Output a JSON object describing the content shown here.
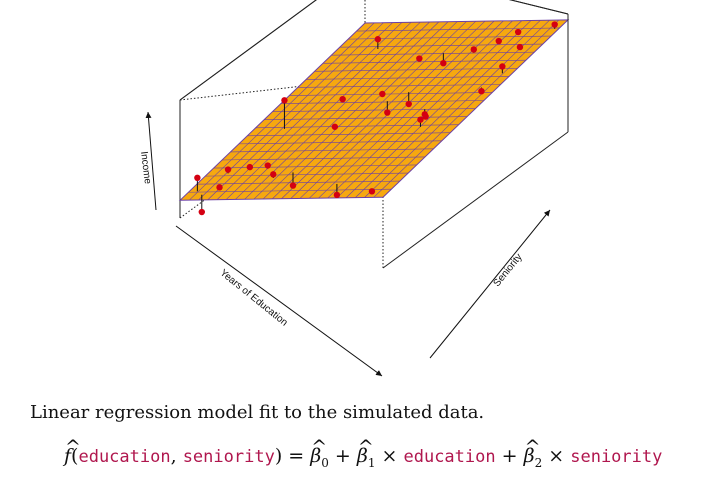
{
  "chart_data": {
    "type": "surface3d",
    "axes": {
      "x": {
        "label": "Years of Education",
        "range": [
          0,
          1
        ]
      },
      "y": {
        "label": "Seniority",
        "range": [
          0,
          1
        ]
      },
      "z": {
        "label": "Income",
        "range": [
          0,
          1
        ]
      }
    },
    "plane": {
      "b0": 0.15,
      "b1": 0.45,
      "b2": 0.35,
      "grid_divisions": 22
    },
    "points": [
      {
        "x": 0.04,
        "y": 0.05,
        "z": 0.3
      },
      {
        "x": 0.08,
        "y": 0.03,
        "z": 0.05
      },
      {
        "x": 0.14,
        "y": 0.06,
        "z": 0.25
      },
      {
        "x": 0.1,
        "y": 0.15,
        "z": 0.28
      },
      {
        "x": 0.18,
        "y": 0.18,
        "z": 0.3
      },
      {
        "x": 0.25,
        "y": 0.2,
        "z": 0.32
      },
      {
        "x": 0.35,
        "y": 0.12,
        "z": 0.38
      },
      {
        "x": 0.42,
        "y": 0.15,
        "z": 0.28
      },
      {
        "x": 0.7,
        "y": 0.08,
        "z": 0.4
      },
      {
        "x": 0.9,
        "y": 0.05,
        "z": 0.55
      },
      {
        "x": 0.15,
        "y": 0.4,
        "z": 0.6
      },
      {
        "x": 0.38,
        "y": 0.42,
        "z": 0.45
      },
      {
        "x": 0.3,
        "y": 0.55,
        "z": 0.5
      },
      {
        "x": 0.45,
        "y": 0.6,
        "z": 0.55
      },
      {
        "x": 0.52,
        "y": 0.55,
        "z": 0.48
      },
      {
        "x": 0.58,
        "y": 0.6,
        "z": 0.52
      },
      {
        "x": 0.75,
        "y": 0.5,
        "z": 0.62
      },
      {
        "x": 0.8,
        "y": 0.45,
        "z": 0.68
      },
      {
        "x": 0.82,
        "y": 0.4,
        "z": 0.72
      },
      {
        "x": 0.2,
        "y": 0.85,
        "z": 0.62
      },
      {
        "x": 0.45,
        "y": 0.8,
        "z": 0.62
      },
      {
        "x": 0.55,
        "y": 0.82,
        "z": 0.6
      },
      {
        "x": 0.7,
        "y": 0.82,
        "z": 0.78
      },
      {
        "x": 0.75,
        "y": 0.9,
        "z": 0.78
      },
      {
        "x": 0.8,
        "y": 0.95,
        "z": 0.82
      },
      {
        "x": 0.9,
        "y": 0.85,
        "z": 0.85
      },
      {
        "x": 0.95,
        "y": 0.7,
        "z": 0.88
      },
      {
        "x": 0.92,
        "y": 0.62,
        "z": 0.75
      },
      {
        "x": 0.98,
        "y": 0.95,
        "z": 0.96
      }
    ],
    "colors": {
      "surface": "#f6a80f",
      "grid": "#6b3fa6",
      "points": "#d40012",
      "box": "#222222"
    }
  },
  "caption": "Linear regression model fit to the simulated data.",
  "formula": {
    "f": "f",
    "open": "(",
    "var1": "education",
    "comma": ", ",
    "var2": "seniority",
    "close_eq": ") = ",
    "beta": "β",
    "s0": "0",
    "s1": "1",
    "s2": "2",
    "plus": " + ",
    "times": " × "
  }
}
